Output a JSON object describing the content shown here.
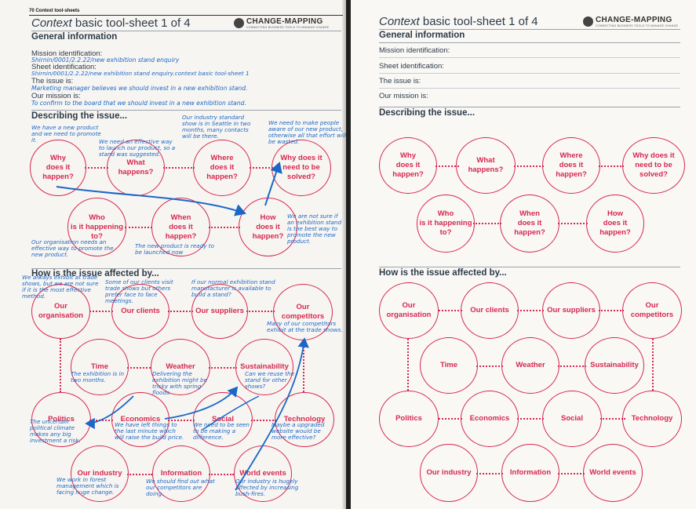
{
  "running_head": "70 Context tool-sheets",
  "title_italic": "Context",
  "title_rest": " basic tool-sheet 1 of 4",
  "logo": {
    "name": "CHANGE-MAPPING",
    "tagline": "CONNECTING BUSINESS TOOLS TO MANAGE CHANGE"
  },
  "general_info_heading": "General information",
  "fields": {
    "mission_id": "Mission identification:",
    "sheet_id": "Sheet identification:",
    "issue": "The issue is:",
    "mission": "Our mission is:"
  },
  "filled": {
    "mission_id": "Shirnin/0001/2.2.22/new exhibition stand enquiry",
    "sheet_id": "Shirnin/0001/2.2.22/new exhibition stand enquiry.context basic tool-sheet 1",
    "issue": "Marketing manager believes we should invest in a new exhibition stand.",
    "mission": "To confirm to the board that we should invest in a new exhibition stand."
  },
  "describing_heading": "Describing the issue...",
  "affected_heading": "How is the issue affected by...",
  "describe_circles": {
    "why": "Why\ndoes it\nhappen?",
    "what": "What\nhappens?",
    "where": "Where\ndoes it\nhappen?",
    "need": "Why does it\nneed to be\nsolved?",
    "who": "Who\nis it happening\nto?",
    "when": "When\ndoes it\nhappen?",
    "how": "How\ndoes it\nhappen?"
  },
  "affected_circles": {
    "org": "Our\norganisation",
    "clients": "Our clients",
    "suppliers": "Our suppliers",
    "competitors": "Our\ncompetitors",
    "time": "Time",
    "weather": "Weather",
    "sustain": "Sustainability",
    "politics": "Politics",
    "economics": "Economics",
    "social": "Social",
    "technology": "Technology",
    "industry": "Our industry",
    "information": "Information",
    "world": "World events"
  },
  "notes": {
    "why": "We have a new product and we need to promote it.",
    "what": "We need an effective way to launch our product, so a stand was suggested.",
    "where": "Our industry standard show is in Seattle in two months, many contacts will be there.",
    "need": "We need to make people aware of our new product, otherwise all that effort will be wasted.",
    "how": "We are not sure if an exhibition stand is the best way to promote the new product.",
    "who": "Our organisation needs an effective way to promote the new product.",
    "when": "The new product is ready to be launched now",
    "org": "We always exhibit at trade shows, but we are not sure if it is the most effective method.",
    "clients": "Some of our clients visit trade shows but others prefer face to face meetings.",
    "suppliers": "If our normal exhibition stand manufacturer is available to build a stand?",
    "competitors": "Many of our competitors exhibit at the trade shows.",
    "time": "The exhibition is in two months.",
    "weather": "Delivering the exhibition might be tricky with spring floods.",
    "sustain": "Can we reuse the stand for other shows?",
    "politics": "The uncertain political climate makes any big investment a risk.",
    "economics": "We have left things to the last minute which will raise the build price.",
    "social": "We need to be seen to be making a difference.",
    "technology": "Maybe a upgraded website would be more effective?",
    "industry": "We work in forest management which is facing huge change.",
    "information": "We should find out what our competitors are doing.",
    "world": "Our industry is hugely affected by increasing bush-fires."
  }
}
